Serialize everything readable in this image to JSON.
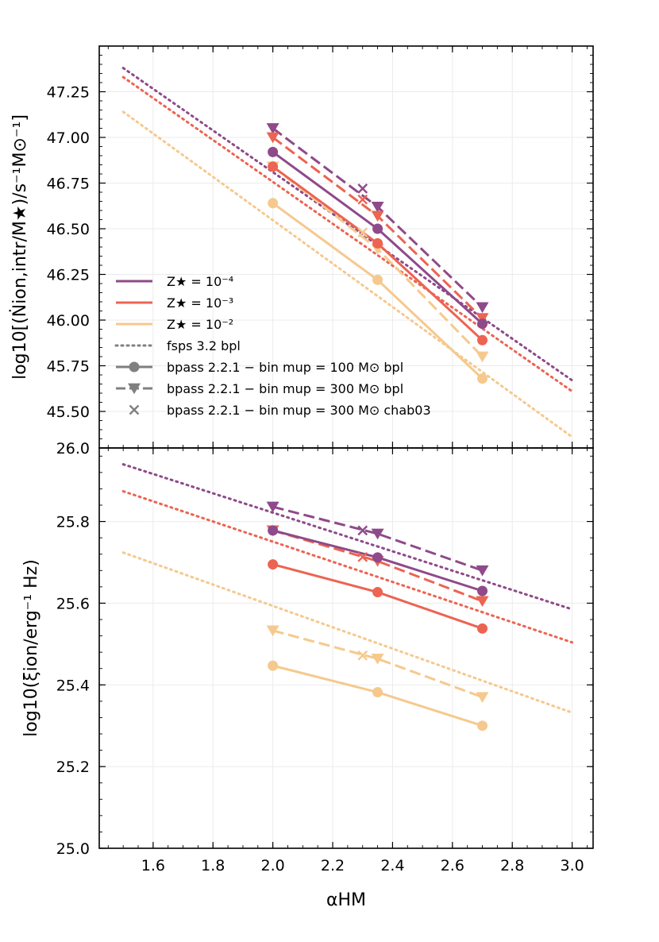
{
  "chart_data": [
    {
      "type": "line",
      "panel": "top",
      "ylabel": "log10[(Ṅion,intr/M★)/s⁻¹M⊙⁻¹]",
      "xlabel": "",
      "xlim": [
        1.42,
        3.07
      ],
      "ylim": [
        45.3,
        47.5
      ],
      "yticks": [
        45.5,
        45.75,
        46.0,
        46.25,
        46.5,
        46.75,
        47.0,
        47.25
      ],
      "ytick_labels": [
        "45.50",
        "45.75",
        "46.00",
        "46.25",
        "46.50",
        "46.75",
        "47.00",
        "47.25"
      ],
      "corner_label": "26.0",
      "series": [
        {
          "name": "fsps Z4",
          "color": "#8e4a8a",
          "style": "dotted",
          "x": [
            1.5,
            3.0
          ],
          "y": [
            47.38,
            45.67
          ]
        },
        {
          "name": "fsps Z3",
          "color": "#ec6452",
          "style": "dotted",
          "x": [
            1.5,
            3.0
          ],
          "y": [
            47.33,
            45.61
          ]
        },
        {
          "name": "fsps Z2",
          "color": "#f5c98e",
          "style": "dotted",
          "x": [
            1.5,
            3.0
          ],
          "y": [
            47.14,
            45.36
          ]
        },
        {
          "name": "bpl300 Z4",
          "color": "#8e4a8a",
          "style": "dashed",
          "marker": "v",
          "x": [
            2.0,
            2.35,
            2.7
          ],
          "y": [
            47.05,
            46.62,
            46.07
          ]
        },
        {
          "name": "bpl300 Z3",
          "color": "#ec6452",
          "style": "dashed",
          "marker": "v",
          "x": [
            2.0,
            2.35,
            2.7
          ],
          "y": [
            47.0,
            46.57,
            46.01
          ]
        },
        {
          "name": "bpl300 Z2",
          "color": "#f5c98e",
          "style": "dashed",
          "marker": "v",
          "x": [
            2.0,
            2.35,
            2.7
          ],
          "y": [
            46.84,
            46.39,
            45.8
          ]
        },
        {
          "name": "bpl100 Z4",
          "color": "#8e4a8a",
          "style": "solid",
          "marker": "o",
          "x": [
            2.0,
            2.35,
            2.7
          ],
          "y": [
            46.92,
            46.5,
            45.98
          ]
        },
        {
          "name": "bpl100 Z3",
          "color": "#ec6452",
          "style": "solid",
          "marker": "o",
          "x": [
            2.0,
            2.35,
            2.7
          ],
          "y": [
            46.84,
            46.42,
            45.89
          ]
        },
        {
          "name": "bpl100 Z2",
          "color": "#f5c98e",
          "style": "solid",
          "marker": "o",
          "x": [
            2.0,
            2.35,
            2.7
          ],
          "y": [
            46.64,
            46.22,
            45.68
          ]
        },
        {
          "name": "chab03 Z4",
          "color": "#8e4a8a",
          "style": "none",
          "marker": "x",
          "x": [
            2.3
          ],
          "y": [
            46.72
          ]
        },
        {
          "name": "chab03 Z3",
          "color": "#ec6452",
          "style": "none",
          "marker": "x",
          "x": [
            2.3
          ],
          "y": [
            46.66
          ]
        },
        {
          "name": "chab03 Z2",
          "color": "#f5c98e",
          "style": "none",
          "marker": "x",
          "x": [
            2.3
          ],
          "y": [
            46.48
          ]
        }
      ],
      "legend": {
        "placement": "lower-left",
        "entries": [
          {
            "label": "Z★ = 10⁻⁴",
            "color": "#8e4a8a",
            "style": "solid",
            "marker": "none"
          },
          {
            "label": "Z★ = 10⁻³",
            "color": "#ec6452",
            "style": "solid",
            "marker": "none"
          },
          {
            "label": "Z★ = 10⁻²",
            "color": "#f5c98e",
            "style": "solid",
            "marker": "none"
          },
          {
            "label": "fsps 3.2 bpl",
            "color": "#808080",
            "style": "dotted",
            "marker": "none"
          },
          {
            "label": "bpass 2.2.1 − bin mup = 100 M⊙ bpl",
            "color": "#808080",
            "style": "solid",
            "marker": "o"
          },
          {
            "label": "bpass 2.2.1 − bin mup = 300 M⊙ bpl",
            "color": "#808080",
            "style": "dashed",
            "marker": "v"
          },
          {
            "label": "bpass 2.2.1 − bin mup = 300 M⊙ chab03",
            "color": "#808080",
            "style": "none",
            "marker": "x"
          }
        ]
      }
    },
    {
      "type": "line",
      "panel": "bottom",
      "ylabel": "log10(ξion/erg⁻¹ Hz)",
      "xlabel": "αHM",
      "xlim": [
        1.42,
        3.07
      ],
      "ylim": [
        25.0,
        25.98
      ],
      "yticks": [
        25.0,
        25.2,
        25.4,
        25.6,
        25.8
      ],
      "ytick_labels": [
        "25.0",
        "25.2",
        "25.4",
        "25.6",
        "25.8"
      ],
      "xticks": [
        1.6,
        1.8,
        2.0,
        2.2,
        2.4,
        2.6,
        2.8,
        3.0
      ],
      "xtick_labels": [
        "1.6",
        "1.8",
        "2.0",
        "2.2",
        "2.4",
        "2.6",
        "2.8",
        "3.0"
      ],
      "series": [
        {
          "name": "fsps Z4",
          "color": "#8e4a8a",
          "style": "dotted",
          "x": [
            1.5,
            3.0
          ],
          "y": [
            25.94,
            25.585
          ]
        },
        {
          "name": "fsps Z3",
          "color": "#ec6452",
          "style": "dotted",
          "x": [
            1.5,
            3.0
          ],
          "y": [
            25.874,
            25.504
          ]
        },
        {
          "name": "fsps Z2",
          "color": "#f5c98e",
          "style": "dotted",
          "x": [
            1.5,
            3.0
          ],
          "y": [
            25.724,
            25.332
          ]
        },
        {
          "name": "bpl300 Z4",
          "color": "#8e4a8a",
          "style": "dashed",
          "marker": "v",
          "x": [
            2.0,
            2.35,
            2.7
          ],
          "y": [
            25.836,
            25.77,
            25.68
          ]
        },
        {
          "name": "bpl300 Z3",
          "color": "#ec6452",
          "style": "dashed",
          "marker": "v",
          "x": [
            2.0,
            2.35,
            2.7
          ],
          "y": [
            25.778,
            25.703,
            25.605
          ]
        },
        {
          "name": "bpl300 Z2",
          "color": "#f5c98e",
          "style": "dashed",
          "marker": "v",
          "x": [
            2.0,
            2.35,
            2.7
          ],
          "y": [
            25.533,
            25.464,
            25.37
          ]
        },
        {
          "name": "bpl100 Z4",
          "color": "#8e4a8a",
          "style": "solid",
          "marker": "o",
          "x": [
            2.0,
            2.35,
            2.7
          ],
          "y": [
            25.778,
            25.712,
            25.63
          ]
        },
        {
          "name": "bpl100 Z3",
          "color": "#ec6452",
          "style": "solid",
          "marker": "o",
          "x": [
            2.0,
            2.35,
            2.7
          ],
          "y": [
            25.695,
            25.627,
            25.538
          ]
        },
        {
          "name": "bpl100 Z2",
          "color": "#f5c98e",
          "style": "solid",
          "marker": "o",
          "x": [
            2.0,
            2.35,
            2.7
          ],
          "y": [
            25.447,
            25.382,
            25.3
          ]
        },
        {
          "name": "chab03 Z4",
          "color": "#8e4a8a",
          "style": "none",
          "marker": "x",
          "x": [
            2.3
          ],
          "y": [
            25.778
          ]
        },
        {
          "name": "chab03 Z3",
          "color": "#ec6452",
          "style": "none",
          "marker": "x",
          "x": [
            2.3
          ],
          "y": [
            25.713
          ]
        },
        {
          "name": "chab03 Z2",
          "color": "#f5c98e",
          "style": "none",
          "marker": "x",
          "x": [
            2.3
          ],
          "y": [
            25.472
          ]
        }
      ]
    }
  ]
}
